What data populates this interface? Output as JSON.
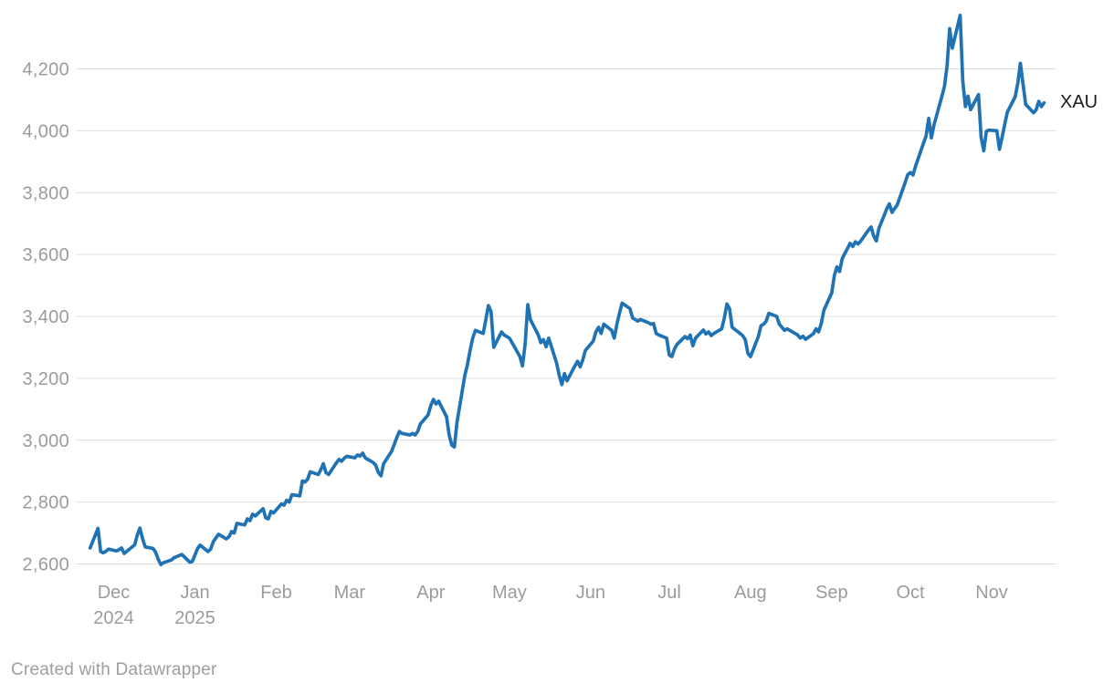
{
  "chart_data": {
    "type": "line",
    "title": "",
    "series_label": "XAU",
    "line_color": "#1f72b4",
    "gridline_color": "#dedede",
    "label_color": "#9b9b9b",
    "series_label_color": "#1c1c1c",
    "background_color": "#ffffff",
    "grid": true,
    "legend_position": "end-of-line",
    "ylim": [
      2550,
      4400
    ],
    "y_ticks": [
      {
        "label": "2,600",
        "value": 2600
      },
      {
        "label": "2,800",
        "value": 2800
      },
      {
        "label": "3,000",
        "value": 3000
      },
      {
        "label": "3,200",
        "value": 3200
      },
      {
        "label": "3,400",
        "value": 3400
      },
      {
        "label": "3,600",
        "value": 3600
      },
      {
        "label": "3,800",
        "value": 3800
      },
      {
        "label": "4,000",
        "value": 4000
      },
      {
        "label": "4,200",
        "value": 4200
      }
    ],
    "x_ticks": [
      {
        "label": "Dec",
        "sub": "2024",
        "date": "2024-12-01"
      },
      {
        "label": "Jan",
        "sub": "2025",
        "date": "2025-01-01"
      },
      {
        "label": "Feb",
        "sub": "",
        "date": "2025-02-01"
      },
      {
        "label": "Mar",
        "sub": "",
        "date": "2025-03-01"
      },
      {
        "label": "Apr",
        "sub": "",
        "date": "2025-04-01"
      },
      {
        "label": "May",
        "sub": "",
        "date": "2025-05-01"
      },
      {
        "label": "Jun",
        "sub": "",
        "date": "2025-06-01"
      },
      {
        "label": "Jul",
        "sub": "",
        "date": "2025-07-01"
      },
      {
        "label": "Aug",
        "sub": "",
        "date": "2025-08-01"
      },
      {
        "label": "Sep",
        "sub": "",
        "date": "2025-09-01"
      },
      {
        "label": "Oct",
        "sub": "",
        "date": "2025-10-01"
      },
      {
        "label": "Nov",
        "sub": "",
        "date": "2025-11-01"
      }
    ],
    "points": [
      [
        "2024-11-22",
        2652
      ],
      [
        "2024-11-25",
        2715
      ],
      [
        "2024-11-26",
        2640
      ],
      [
        "2024-11-27",
        2636
      ],
      [
        "2024-11-28",
        2641
      ],
      [
        "2024-11-29",
        2648
      ],
      [
        "2024-12-02",
        2642
      ],
      [
        "2024-12-03",
        2646
      ],
      [
        "2024-12-04",
        2652
      ],
      [
        "2024-12-05",
        2634
      ],
      [
        "2024-12-06",
        2641
      ],
      [
        "2024-12-09",
        2662
      ],
      [
        "2024-12-10",
        2694
      ],
      [
        "2024-12-11",
        2716
      ],
      [
        "2024-12-12",
        2682
      ],
      [
        "2024-12-13",
        2655
      ],
      [
        "2024-12-16",
        2650
      ],
      [
        "2024-12-17",
        2638
      ],
      [
        "2024-12-18",
        2615
      ],
      [
        "2024-12-19",
        2598
      ],
      [
        "2024-12-20",
        2604
      ],
      [
        "2024-12-23",
        2613
      ],
      [
        "2024-12-24",
        2620
      ],
      [
        "2024-12-26",
        2627
      ],
      [
        "2024-12-27",
        2631
      ],
      [
        "2024-12-30",
        2606
      ],
      [
        "2024-12-31",
        2608
      ],
      [
        "2025-01-02",
        2650
      ],
      [
        "2025-01-03",
        2661
      ],
      [
        "2025-01-06",
        2640
      ],
      [
        "2025-01-07",
        2648
      ],
      [
        "2025-01-08",
        2672
      ],
      [
        "2025-01-10",
        2696
      ],
      [
        "2025-01-13",
        2681
      ],
      [
        "2025-01-14",
        2688
      ],
      [
        "2025-01-15",
        2705
      ],
      [
        "2025-01-16",
        2700
      ],
      [
        "2025-01-17",
        2731
      ],
      [
        "2025-01-20",
        2726
      ],
      [
        "2025-01-21",
        2746
      ],
      [
        "2025-01-22",
        2740
      ],
      [
        "2025-01-23",
        2761
      ],
      [
        "2025-01-24",
        2755
      ],
      [
        "2025-01-27",
        2779
      ],
      [
        "2025-01-28",
        2749
      ],
      [
        "2025-01-29",
        2746
      ],
      [
        "2025-01-30",
        2770
      ],
      [
        "2025-01-31",
        2765
      ],
      [
        "2025-02-03",
        2794
      ],
      [
        "2025-02-04",
        2790
      ],
      [
        "2025-02-05",
        2806
      ],
      [
        "2025-02-06",
        2800
      ],
      [
        "2025-02-07",
        2824
      ],
      [
        "2025-02-10",
        2820
      ],
      [
        "2025-02-11",
        2868
      ],
      [
        "2025-02-12",
        2865
      ],
      [
        "2025-02-13",
        2874
      ],
      [
        "2025-02-14",
        2898
      ],
      [
        "2025-02-17",
        2889
      ],
      [
        "2025-02-18",
        2904
      ],
      [
        "2025-02-19",
        2924
      ],
      [
        "2025-02-20",
        2895
      ],
      [
        "2025-02-21",
        2889
      ],
      [
        "2025-02-24",
        2927
      ],
      [
        "2025-02-25",
        2938
      ],
      [
        "2025-02-26",
        2932
      ],
      [
        "2025-02-27",
        2942
      ],
      [
        "2025-02-28",
        2948
      ],
      [
        "2025-03-03",
        2943
      ],
      [
        "2025-03-04",
        2952
      ],
      [
        "2025-03-05",
        2949
      ],
      [
        "2025-03-06",
        2958
      ],
      [
        "2025-03-07",
        2943
      ],
      [
        "2025-03-10",
        2928
      ],
      [
        "2025-03-11",
        2919
      ],
      [
        "2025-03-12",
        2895
      ],
      [
        "2025-03-13",
        2885
      ],
      [
        "2025-03-14",
        2924
      ],
      [
        "2025-03-17",
        2963
      ],
      [
        "2025-03-18",
        2985
      ],
      [
        "2025-03-19",
        3008
      ],
      [
        "2025-03-20",
        3028
      ],
      [
        "2025-03-21",
        3022
      ],
      [
        "2025-03-24",
        3017
      ],
      [
        "2025-03-25",
        3022
      ],
      [
        "2025-03-26",
        3017
      ],
      [
        "2025-03-27",
        3028
      ],
      [
        "2025-03-28",
        3052
      ],
      [
        "2025-03-31",
        3082
      ],
      [
        "2025-04-01",
        3112
      ],
      [
        "2025-04-02",
        3132
      ],
      [
        "2025-04-03",
        3117
      ],
      [
        "2025-04-04",
        3126
      ],
      [
        "2025-04-07",
        3076
      ],
      [
        "2025-04-08",
        3017
      ],
      [
        "2025-04-09",
        2984
      ],
      [
        "2025-04-10",
        2978
      ],
      [
        "2025-04-11",
        3058
      ],
      [
        "2025-04-14",
        3210
      ],
      [
        "2025-04-15",
        3245
      ],
      [
        "2025-04-16",
        3290
      ],
      [
        "2025-04-17",
        3330
      ],
      [
        "2025-04-18",
        3355
      ],
      [
        "2025-04-21",
        3345
      ],
      [
        "2025-04-22",
        3390
      ],
      [
        "2025-04-23",
        3435
      ],
      [
        "2025-04-24",
        3415
      ],
      [
        "2025-04-25",
        3300
      ],
      [
        "2025-04-28",
        3350
      ],
      [
        "2025-04-29",
        3340
      ],
      [
        "2025-04-30",
        3335
      ],
      [
        "2025-05-01",
        3330
      ],
      [
        "2025-05-02",
        3315
      ],
      [
        "2025-05-05",
        3270
      ],
      [
        "2025-05-06",
        3240
      ],
      [
        "2025-05-07",
        3310
      ],
      [
        "2025-05-08",
        3438
      ],
      [
        "2025-05-09",
        3390
      ],
      [
        "2025-05-12",
        3340
      ],
      [
        "2025-05-13",
        3315
      ],
      [
        "2025-05-14",
        3325
      ],
      [
        "2025-05-15",
        3302
      ],
      [
        "2025-05-16",
        3330
      ],
      [
        "2025-05-19",
        3250
      ],
      [
        "2025-05-20",
        3210
      ],
      [
        "2025-05-21",
        3180
      ],
      [
        "2025-05-22",
        3215
      ],
      [
        "2025-05-23",
        3192
      ],
      [
        "2025-05-26",
        3240
      ],
      [
        "2025-05-27",
        3255
      ],
      [
        "2025-05-28",
        3237
      ],
      [
        "2025-05-29",
        3260
      ],
      [
        "2025-05-30",
        3290
      ],
      [
        "2025-06-02",
        3320
      ],
      [
        "2025-06-03",
        3350
      ],
      [
        "2025-06-04",
        3365
      ],
      [
        "2025-06-05",
        3345
      ],
      [
        "2025-06-06",
        3375
      ],
      [
        "2025-06-09",
        3355
      ],
      [
        "2025-06-10",
        3330
      ],
      [
        "2025-06-11",
        3375
      ],
      [
        "2025-06-12",
        3410
      ],
      [
        "2025-06-13",
        3443
      ],
      [
        "2025-06-16",
        3425
      ],
      [
        "2025-06-17",
        3395
      ],
      [
        "2025-06-18",
        3390
      ],
      [
        "2025-06-19",
        3385
      ],
      [
        "2025-06-20",
        3390
      ],
      [
        "2025-06-23",
        3380
      ],
      [
        "2025-06-24",
        3375
      ],
      [
        "2025-06-25",
        3377
      ],
      [
        "2025-06-26",
        3345
      ],
      [
        "2025-06-27",
        3340
      ],
      [
        "2025-06-30",
        3330
      ],
      [
        "2025-07-01",
        3275
      ],
      [
        "2025-07-02",
        3270
      ],
      [
        "2025-07-03",
        3295
      ],
      [
        "2025-07-04",
        3310
      ],
      [
        "2025-07-07",
        3335
      ],
      [
        "2025-07-08",
        3328
      ],
      [
        "2025-07-09",
        3340
      ],
      [
        "2025-07-10",
        3305
      ],
      [
        "2025-07-11",
        3330
      ],
      [
        "2025-07-14",
        3356
      ],
      [
        "2025-07-15",
        3343
      ],
      [
        "2025-07-16",
        3350
      ],
      [
        "2025-07-17",
        3338
      ],
      [
        "2025-07-18",
        3345
      ],
      [
        "2025-07-21",
        3360
      ],
      [
        "2025-07-22",
        3394
      ],
      [
        "2025-07-23",
        3440
      ],
      [
        "2025-07-24",
        3425
      ],
      [
        "2025-07-25",
        3365
      ],
      [
        "2025-07-28",
        3345
      ],
      [
        "2025-07-29",
        3338
      ],
      [
        "2025-07-30",
        3325
      ],
      [
        "2025-07-31",
        3280
      ],
      [
        "2025-08-01",
        3270
      ],
      [
        "2025-08-04",
        3335
      ],
      [
        "2025-08-05",
        3370
      ],
      [
        "2025-08-06",
        3375
      ],
      [
        "2025-08-07",
        3385
      ],
      [
        "2025-08-08",
        3410
      ],
      [
        "2025-08-11",
        3400
      ],
      [
        "2025-08-12",
        3375
      ],
      [
        "2025-08-13",
        3365
      ],
      [
        "2025-08-14",
        3355
      ],
      [
        "2025-08-15",
        3360
      ],
      [
        "2025-08-18",
        3345
      ],
      [
        "2025-08-19",
        3340
      ],
      [
        "2025-08-20",
        3330
      ],
      [
        "2025-08-21",
        3336
      ],
      [
        "2025-08-22",
        3326
      ],
      [
        "2025-08-25",
        3344
      ],
      [
        "2025-08-26",
        3360
      ],
      [
        "2025-08-27",
        3350
      ],
      [
        "2025-08-28",
        3377
      ],
      [
        "2025-08-29",
        3420
      ],
      [
        "2025-09-01",
        3476
      ],
      [
        "2025-09-02",
        3533
      ],
      [
        "2025-09-03",
        3560
      ],
      [
        "2025-09-04",
        3545
      ],
      [
        "2025-09-05",
        3587
      ],
      [
        "2025-09-08",
        3636
      ],
      [
        "2025-09-09",
        3626
      ],
      [
        "2025-09-10",
        3641
      ],
      [
        "2025-09-11",
        3634
      ],
      [
        "2025-09-12",
        3643
      ],
      [
        "2025-09-15",
        3679
      ],
      [
        "2025-09-16",
        3689
      ],
      [
        "2025-09-17",
        3660
      ],
      [
        "2025-09-18",
        3644
      ],
      [
        "2025-09-19",
        3685
      ],
      [
        "2025-09-22",
        3748
      ],
      [
        "2025-09-23",
        3764
      ],
      [
        "2025-09-24",
        3736
      ],
      [
        "2025-09-25",
        3749
      ],
      [
        "2025-09-26",
        3760
      ],
      [
        "2025-09-29",
        3833
      ],
      [
        "2025-09-30",
        3858
      ],
      [
        "2025-10-01",
        3865
      ],
      [
        "2025-10-02",
        3857
      ],
      [
        "2025-10-03",
        3886
      ],
      [
        "2025-10-06",
        3960
      ],
      [
        "2025-10-07",
        3983
      ],
      [
        "2025-10-08",
        4040
      ],
      [
        "2025-10-09",
        3977
      ],
      [
        "2025-10-10",
        4018
      ],
      [
        "2025-10-13",
        4110
      ],
      [
        "2025-10-14",
        4143
      ],
      [
        "2025-10-15",
        4209
      ],
      [
        "2025-10-16",
        4330
      ],
      [
        "2025-10-17",
        4267
      ],
      [
        "2025-10-20",
        4373
      ],
      [
        "2025-10-21",
        4160
      ],
      [
        "2025-10-22",
        4078
      ],
      [
        "2025-10-23",
        4112
      ],
      [
        "2025-10-24",
        4068
      ],
      [
        "2025-10-27",
        4117
      ],
      [
        "2025-10-28",
        3978
      ],
      [
        "2025-10-29",
        3935
      ],
      [
        "2025-10-30",
        3998
      ],
      [
        "2025-10-31",
        4002
      ],
      [
        "2025-11-03",
        4000
      ],
      [
        "2025-11-04",
        3940
      ],
      [
        "2025-11-05",
        3980
      ],
      [
        "2025-11-06",
        4020
      ],
      [
        "2025-11-07",
        4060
      ],
      [
        "2025-11-10",
        4110
      ],
      [
        "2025-11-11",
        4155
      ],
      [
        "2025-11-12",
        4218
      ],
      [
        "2025-11-13",
        4150
      ],
      [
        "2025-11-14",
        4085
      ],
      [
        "2025-11-17",
        4058
      ],
      [
        "2025-11-18",
        4068
      ],
      [
        "2025-11-19",
        4095
      ],
      [
        "2025-11-20",
        4078
      ],
      [
        "2025-11-21",
        4090
      ]
    ]
  },
  "footer": {
    "credit": "Created with Datawrapper"
  }
}
